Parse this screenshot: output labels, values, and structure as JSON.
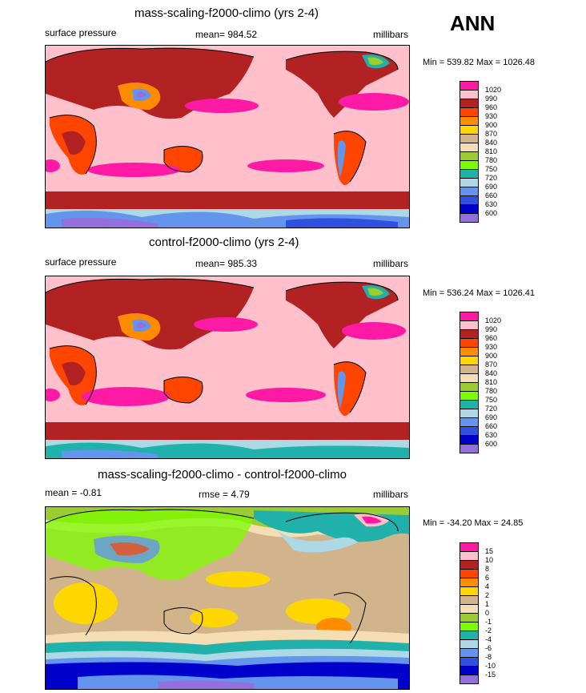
{
  "season": "ANN",
  "panels": [
    {
      "title": "mass-scaling-f2000-climo (yrs 2-4)",
      "left_label": "surface pressure",
      "center_label": "mean= 984.52",
      "right_label": "millibars",
      "stats": "Min = 539.82 Max = 1026.48",
      "legend": {
        "labels": [
          "1020",
          "990",
          "960",
          "930",
          "900",
          "870",
          "840",
          "810",
          "780",
          "750",
          "720",
          "690",
          "660",
          "630",
          "600"
        ],
        "colors": [
          "#ff1aa6",
          "#ffc0cb",
          "#b22222",
          "#ff4500",
          "#ff8c00",
          "#ffd700",
          "#d2b48c",
          "#f5deb3",
          "#9acd32",
          "#7cfc00",
          "#20b2aa",
          "#add8e6",
          "#6495ed",
          "#3050e0",
          "#0000cd",
          "#9370db"
        ]
      }
    },
    {
      "title": "control-f2000-climo (yrs 2-4)",
      "left_label": "surface pressure",
      "center_label": "mean= 985.33",
      "right_label": "millibars",
      "stats": "Min = 536.24 Max = 1026.41",
      "legend": {
        "labels": [
          "1020",
          "990",
          "960",
          "930",
          "900",
          "870",
          "840",
          "810",
          "780",
          "750",
          "720",
          "690",
          "660",
          "630",
          "600"
        ],
        "colors": [
          "#ff1aa6",
          "#ffc0cb",
          "#b22222",
          "#ff4500",
          "#ff8c00",
          "#ffd700",
          "#d2b48c",
          "#f5deb3",
          "#9acd32",
          "#7cfc00",
          "#20b2aa",
          "#add8e6",
          "#6495ed",
          "#3050e0",
          "#0000cd",
          "#9370db"
        ]
      }
    },
    {
      "title": "mass-scaling-f2000-climo - control-f2000-climo",
      "left_label": "mean =  -0.81",
      "center_label": "rmse =   4.79",
      "right_label": "millibars",
      "stats": "Min = -34.20 Max =  24.85",
      "legend": {
        "labels": [
          "15",
          "10",
          "8",
          "6",
          "4",
          "2",
          "1",
          "0",
          "-1",
          "-2",
          "-4",
          "-6",
          "-8",
          "-10",
          "-15"
        ],
        "colors": [
          "#ff1aa6",
          "#ffc0cb",
          "#b22222",
          "#ff4500",
          "#ff8c00",
          "#ffd700",
          "#d2b48c",
          "#f5deb3",
          "#9acd32",
          "#7cfc00",
          "#20b2aa",
          "#add8e6",
          "#6495ed",
          "#3050e0",
          "#0000cd",
          "#9370db"
        ]
      }
    }
  ]
}
